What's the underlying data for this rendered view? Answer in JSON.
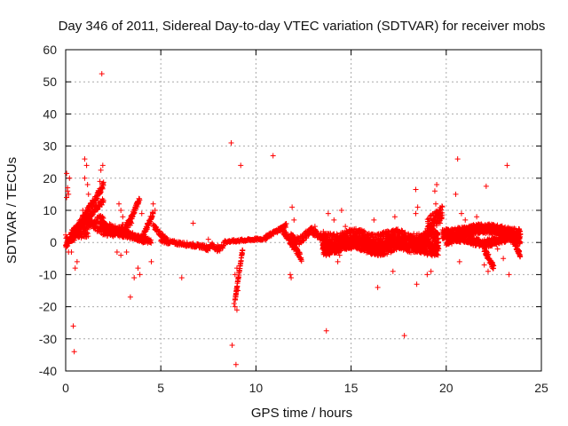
{
  "chart_data": {
    "type": "scatter",
    "title": "Day 346 of 2011, Sidereal Day-to-day VTEC variation (SDTVAR) for receiver mobs",
    "xlabel": "GPS time / hours",
    "ylabel": "SDTVAR / TECUs",
    "xlim": [
      0,
      25
    ],
    "ylim": [
      -40,
      60
    ],
    "xticks": [
      "0",
      "5",
      "10",
      "15",
      "20",
      "25"
    ],
    "yticks": [
      "-40",
      "-30",
      "-20",
      "-10",
      "0",
      "10",
      "20",
      "30",
      "40",
      "50",
      "60"
    ],
    "grid": true,
    "marker": "+",
    "color": "#ff0000",
    "series": [
      {
        "name": "SDTVAR",
        "points": [
          [
            0.05,
            21.5
          ],
          [
            0.1,
            17
          ],
          [
            0.1,
            16
          ],
          [
            0.15,
            15
          ],
          [
            0.05,
            14
          ],
          [
            0.2,
            20
          ],
          [
            0.1,
            -1
          ],
          [
            0.15,
            -3
          ],
          [
            0.3,
            -3
          ],
          [
            0.4,
            -26
          ],
          [
            0.45,
            -34
          ],
          [
            0.5,
            -8
          ],
          [
            0.6,
            -6
          ],
          [
            0.4,
            1
          ],
          [
            0.5,
            2
          ],
          [
            1.0,
            26
          ],
          [
            1.1,
            24
          ],
          [
            1.0,
            20
          ],
          [
            1.15,
            18
          ],
          [
            1.3,
            12
          ],
          [
            1.2,
            15
          ],
          [
            0.9,
            10
          ],
          [
            1.9,
            52.5
          ],
          [
            1.95,
            24
          ],
          [
            1.85,
            22.5
          ],
          [
            1.8,
            19
          ],
          [
            1.9,
            17
          ],
          [
            2.8,
            12
          ],
          [
            2.9,
            10
          ],
          [
            3.0,
            8
          ],
          [
            2.7,
            -3
          ],
          [
            2.9,
            -4
          ],
          [
            3.2,
            -3
          ],
          [
            3.4,
            -17
          ],
          [
            3.6,
            -11
          ],
          [
            3.9,
            -10
          ],
          [
            3.8,
            -8
          ],
          [
            4.0,
            9
          ],
          [
            4.3,
            6
          ],
          [
            4.5,
            -6
          ],
          [
            4.6,
            12
          ],
          [
            4.7,
            10
          ],
          [
            5.0,
            2
          ],
          [
            5.2,
            1
          ],
          [
            6.1,
            -11
          ],
          [
            6.7,
            6
          ],
          [
            7.5,
            1
          ],
          [
            7.8,
            -1
          ],
          [
            8.0,
            -1
          ],
          [
            8.7,
            31
          ],
          [
            8.75,
            -32
          ],
          [
            8.85,
            -19
          ],
          [
            8.9,
            -20
          ],
          [
            8.95,
            -38
          ],
          [
            9.0,
            -21
          ],
          [
            9.05,
            -15
          ],
          [
            9.2,
            24
          ],
          [
            8.9,
            -10
          ],
          [
            9.0,
            -8
          ],
          [
            9.05,
            -12
          ],
          [
            10.9,
            27
          ],
          [
            11.8,
            -10
          ],
          [
            11.85,
            -11
          ],
          [
            11.9,
            11
          ],
          [
            12.0,
            7
          ],
          [
            13.1,
            5
          ],
          [
            13.5,
            2
          ],
          [
            13.7,
            -27.5
          ],
          [
            13.8,
            9
          ],
          [
            14.1,
            7
          ],
          [
            14.3,
            -6
          ],
          [
            14.5,
            10
          ],
          [
            14.7,
            5
          ],
          [
            14.4,
            -4
          ],
          [
            15.0,
            -2
          ],
          [
            15.3,
            -1
          ],
          [
            15.6,
            3
          ],
          [
            16.0,
            -3
          ],
          [
            16.4,
            -14
          ],
          [
            16.2,
            7
          ],
          [
            16.8,
            -1
          ],
          [
            17.2,
            -9
          ],
          [
            17.3,
            8
          ],
          [
            17.8,
            -29
          ],
          [
            18.4,
            16.5
          ],
          [
            18.45,
            -13
          ],
          [
            18.5,
            11
          ],
          [
            18.4,
            9
          ],
          [
            19.0,
            -10
          ],
          [
            19.2,
            -9
          ],
          [
            19.4,
            16
          ],
          [
            19.5,
            18
          ],
          [
            19.45,
            12
          ],
          [
            19.6,
            -2
          ],
          [
            19.2,
            -2
          ],
          [
            20.6,
            26
          ],
          [
            20.7,
            -6
          ],
          [
            20.5,
            15
          ],
          [
            20.8,
            9
          ],
          [
            21.0,
            7
          ],
          [
            22.1,
            17.5
          ],
          [
            22.0,
            -7
          ],
          [
            22.2,
            -9
          ],
          [
            21.6,
            8
          ],
          [
            21.8,
            5
          ],
          [
            23.2,
            24
          ],
          [
            23.3,
            -10
          ],
          [
            23.0,
            -5
          ],
          [
            22.7,
            -2
          ]
        ]
      }
    ]
  }
}
